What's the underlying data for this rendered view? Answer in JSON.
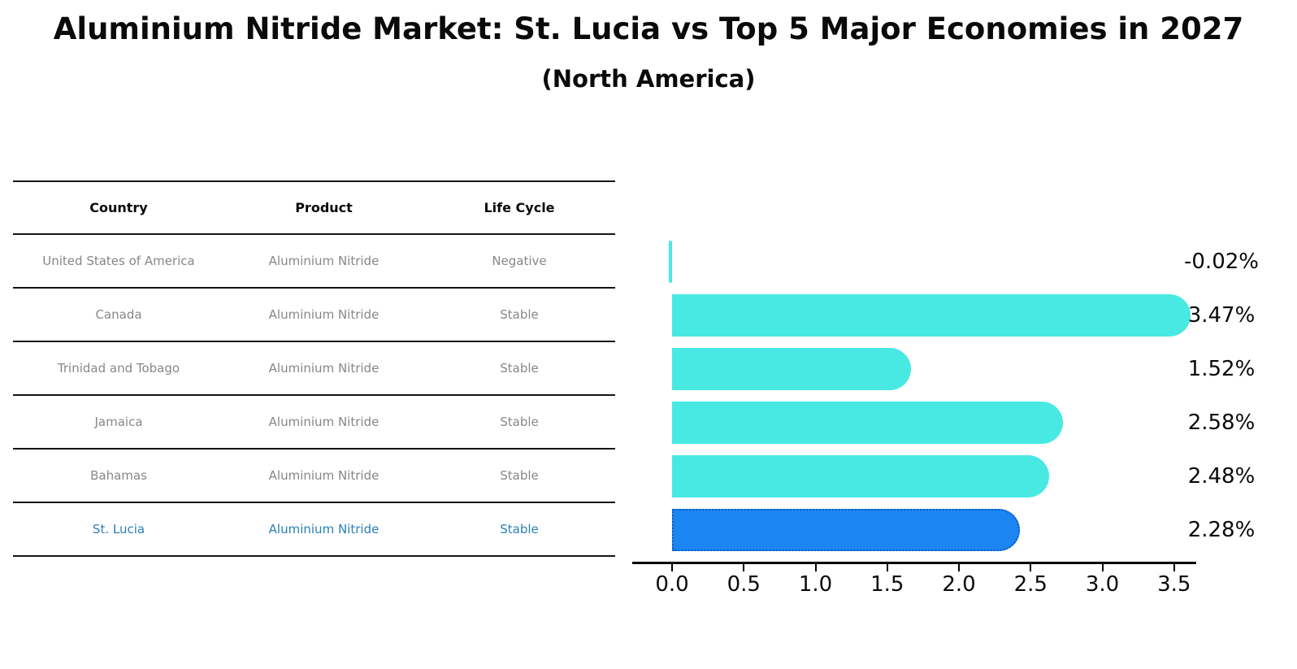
{
  "title": "Aluminium Nitride Market: St. Lucia vs Top 5 Major Economies in 2027",
  "subtitle": "(North America)",
  "table": {
    "headers": [
      "Country",
      "Product",
      "Life Cycle"
    ],
    "rows": [
      {
        "country": "United States of America",
        "product": "Aluminium Nitride",
        "life_cycle": "Negative"
      },
      {
        "country": "Canada",
        "product": "Aluminium Nitride",
        "life_cycle": "Stable"
      },
      {
        "country": "Trinidad and Tobago",
        "product": "Aluminium Nitride",
        "life_cycle": "Stable"
      },
      {
        "country": "Jamaica",
        "product": "Aluminium Nitride",
        "life_cycle": "Stable"
      },
      {
        "country": "Bahamas",
        "product": "Aluminium Nitride",
        "life_cycle": "Stable"
      },
      {
        "country": "St. Lucia",
        "product": "Aluminium Nitride",
        "life_cycle": "Stable"
      }
    ],
    "highlight_row_index": 5
  },
  "chart_data": {
    "type": "bar",
    "orientation": "horizontal",
    "title": "Aluminium Nitride Market: St. Lucia vs Top 5 Major Economies in 2027 (North America)",
    "categories": [
      "United States of America",
      "Canada",
      "Trinidad and Tobago",
      "Jamaica",
      "Bahamas",
      "St. Lucia"
    ],
    "values": [
      -0.02,
      3.47,
      1.52,
      2.58,
      2.48,
      2.28
    ],
    "value_labels": [
      "-0.02%",
      "3.47%",
      "1.52%",
      "2.58%",
      "2.48%",
      "2.28%"
    ],
    "unit": "percent",
    "x_ticks": [
      "0.0",
      "0.5",
      "1.0",
      "1.5",
      "2.0",
      "2.5",
      "3.0",
      "3.5"
    ],
    "xlim": [
      -0.3,
      3.7
    ],
    "grid": false,
    "legend": "none",
    "highlight_index": 5,
    "bar_color": "#48e9e2",
    "highlight_color": "#1b86f2",
    "highlight_border_color": "#0d5cc0",
    "axis_color": "#000000",
    "value_label_color": "#0a0a0a"
  },
  "colors": {
    "table_row_text": "#878787",
    "table_header_text": "#0a0a0a",
    "highlight_text": "#2980b9",
    "background": "#ffffff"
  }
}
